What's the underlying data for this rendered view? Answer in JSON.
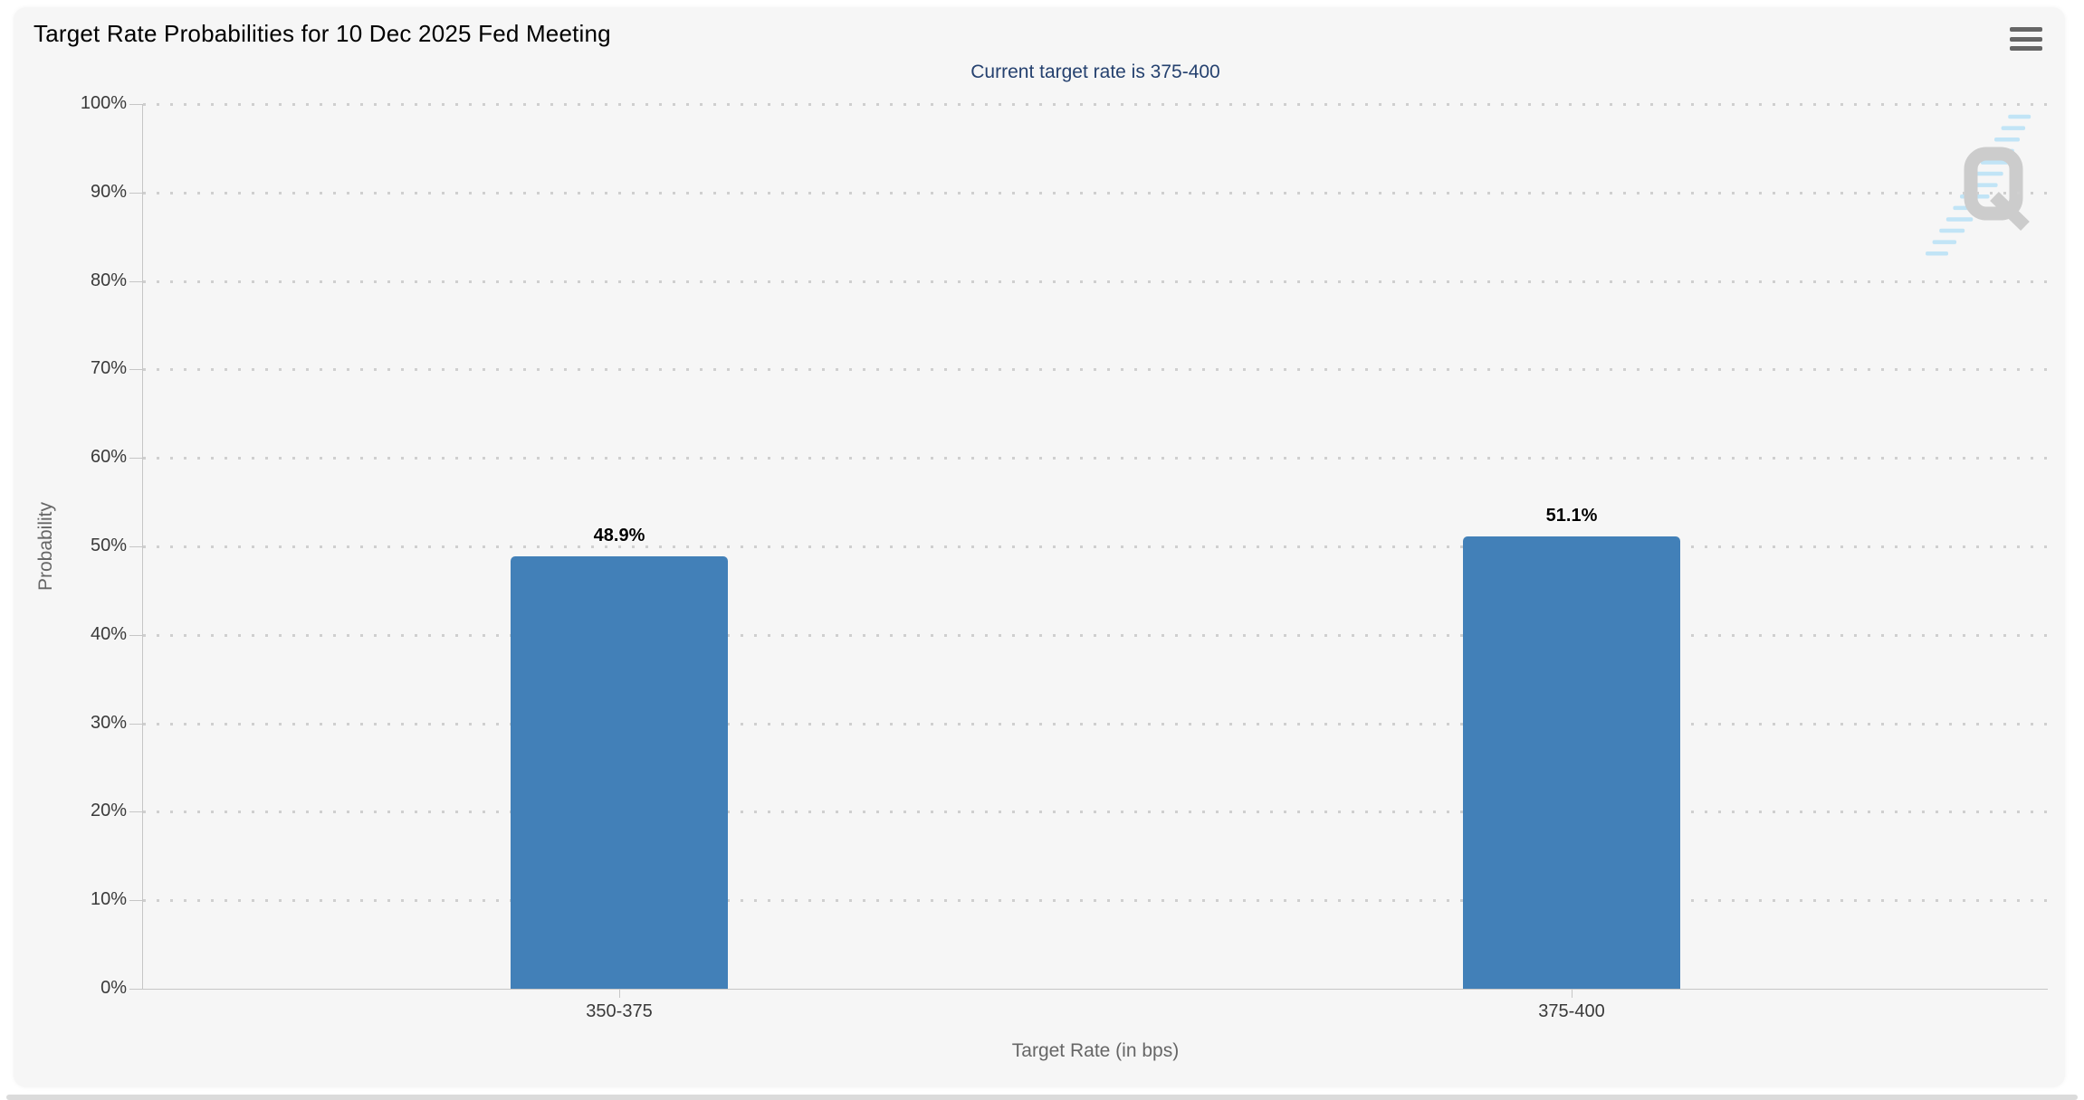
{
  "header": {
    "menu_tooltip": "Chart context menu"
  },
  "watermark": {
    "letter": "Q"
  },
  "colors": {
    "bar": "#4280b8",
    "subtitle_text": "#25416f"
  },
  "chart_data": {
    "type": "bar",
    "title": "Target Rate Probabilities for 10 Dec 2025 Fed Meeting",
    "subtitle": "Current target rate is 375-400",
    "categories": [
      "350-375",
      "375-400"
    ],
    "values": [
      48.9,
      51.1
    ],
    "value_labels": [
      "48.9%",
      "51.1%"
    ],
    "xlabel": "Target Rate (in bps)",
    "ylabel": "Probability",
    "ylim": [
      0,
      100
    ],
    "ytick_interval": 10,
    "ytick_labels": [
      "0%",
      "10%",
      "20%",
      "30%",
      "40%",
      "50%",
      "60%",
      "70%",
      "80%",
      "90%",
      "100%"
    ],
    "grid": "dotted-horizontal",
    "legend": "none",
    "bar_color": "#4280b8"
  }
}
